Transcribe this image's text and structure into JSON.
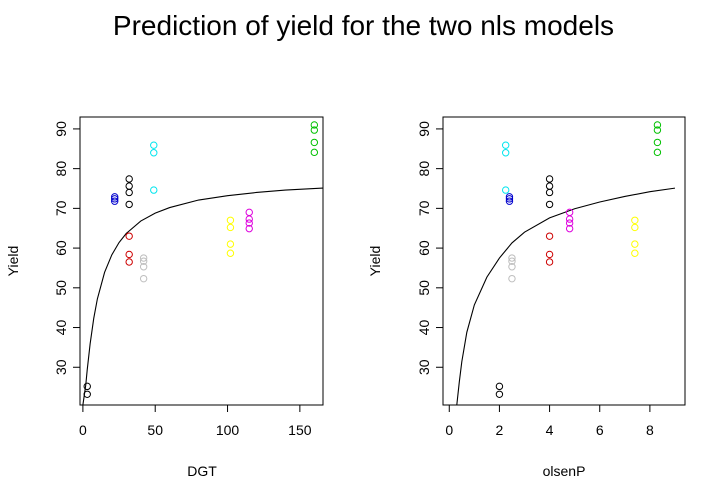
{
  "figure": {
    "title": "Prediction of yield for the two nls models"
  },
  "chart_data": [
    {
      "type": "scatter",
      "title": "",
      "xlabel": "DGT",
      "ylabel": "Yield",
      "xlim": [
        -2,
        166
      ],
      "ylim": [
        20.5,
        93
      ],
      "xticks": [
        0,
        50,
        100,
        150
      ],
      "yticks": [
        30,
        40,
        50,
        60,
        70,
        80,
        90
      ],
      "grid": false,
      "series": [
        {
          "color": "#000000",
          "x": [
            3,
            3,
            32,
            32,
            32,
            32
          ],
          "y": [
            23.2,
            25.2,
            71,
            74,
            75.6,
            77.4
          ]
        },
        {
          "color": "#0000cd",
          "x": [
            22,
            22,
            22
          ],
          "y": [
            71.8,
            72.4,
            72.9
          ]
        },
        {
          "color": "#cd0000",
          "x": [
            32,
            32,
            32
          ],
          "y": [
            56.5,
            58.4,
            63
          ]
        },
        {
          "color": "#bebebe",
          "x": [
            42,
            42,
            42,
            42
          ],
          "y": [
            52.3,
            55.3,
            56.7,
            57.5
          ]
        },
        {
          "color": "#00e5ee",
          "x": [
            49,
            49,
            49
          ],
          "y": [
            74.6,
            84,
            85.9
          ]
        },
        {
          "color": "#ffff00",
          "x": [
            102,
            102,
            102,
            102
          ],
          "y": [
            58.7,
            61,
            65.2,
            67
          ]
        },
        {
          "color": "#dd00dd",
          "x": [
            115,
            115,
            115,
            115
          ],
          "y": [
            64.9,
            66.3,
            67.3,
            69
          ]
        },
        {
          "color": "#00c000",
          "x": [
            160,
            160,
            160,
            160
          ],
          "y": [
            84.1,
            86.6,
            89.7,
            91
          ]
        }
      ],
      "curve": {
        "color": "#000000",
        "x": [
          0,
          2,
          3,
          5,
          7.5,
          10,
          15,
          20,
          25,
          30,
          40,
          50,
          60,
          80,
          100,
          120,
          140,
          166
        ],
        "y": [
          20.5,
          25.6,
          29.4,
          35.9,
          42.3,
          47.2,
          53.9,
          58.3,
          61.4,
          63.7,
          66.8,
          68.8,
          70.2,
          72.1,
          73.2,
          74,
          74.6,
          75.1
        ]
      }
    },
    {
      "type": "scatter",
      "title": "",
      "xlabel": "olsenP",
      "ylabel": "Yield",
      "xlim": [
        -0.25,
        9.4
      ],
      "ylim": [
        20.5,
        93
      ],
      "xticks": [
        0,
        2,
        4,
        6,
        8
      ],
      "yticks": [
        30,
        40,
        50,
        60,
        70,
        80,
        90
      ],
      "grid": false,
      "series": [
        {
          "color": "#000000",
          "x": [
            2,
            2,
            4,
            4,
            4,
            4
          ],
          "y": [
            23.2,
            25.2,
            71,
            74,
            75.6,
            77.4
          ]
        },
        {
          "color": "#0000cd",
          "x": [
            2.4,
            2.4,
            2.4
          ],
          "y": [
            71.8,
            72.4,
            72.9
          ]
        },
        {
          "color": "#cd0000",
          "x": [
            4,
            4,
            4
          ],
          "y": [
            56.5,
            58.4,
            63
          ]
        },
        {
          "color": "#bebebe",
          "x": [
            2.5,
            2.5,
            2.5,
            2.5
          ],
          "y": [
            52.3,
            55.3,
            56.7,
            57.5
          ]
        },
        {
          "color": "#00e5ee",
          "x": [
            2.25,
            2.25,
            2.25
          ],
          "y": [
            74.6,
            84,
            85.9
          ]
        },
        {
          "color": "#ffff00",
          "x": [
            7.4,
            7.4,
            7.4,
            7.4
          ],
          "y": [
            58.7,
            61,
            65.2,
            67
          ]
        },
        {
          "color": "#dd00dd",
          "x": [
            4.8,
            4.8,
            4.8,
            4.8
          ],
          "y": [
            64.9,
            66.3,
            67.3,
            69
          ]
        },
        {
          "color": "#00c000",
          "x": [
            8.3,
            8.3,
            8.3,
            8.3
          ],
          "y": [
            84.1,
            86.6,
            89.7,
            91
          ]
        }
      ],
      "curve": {
        "color": "#000000",
        "x": [
          0.3,
          0.4,
          0.5,
          0.7,
          1,
          1.5,
          2,
          2.5,
          3,
          4,
          5,
          6,
          7,
          8,
          9
        ],
        "y": [
          20.5,
          26.3,
          31.4,
          38.8,
          45.7,
          52.7,
          57.5,
          61.3,
          64,
          67.6,
          69.9,
          71.6,
          73,
          74.2,
          75.1
        ]
      }
    }
  ]
}
